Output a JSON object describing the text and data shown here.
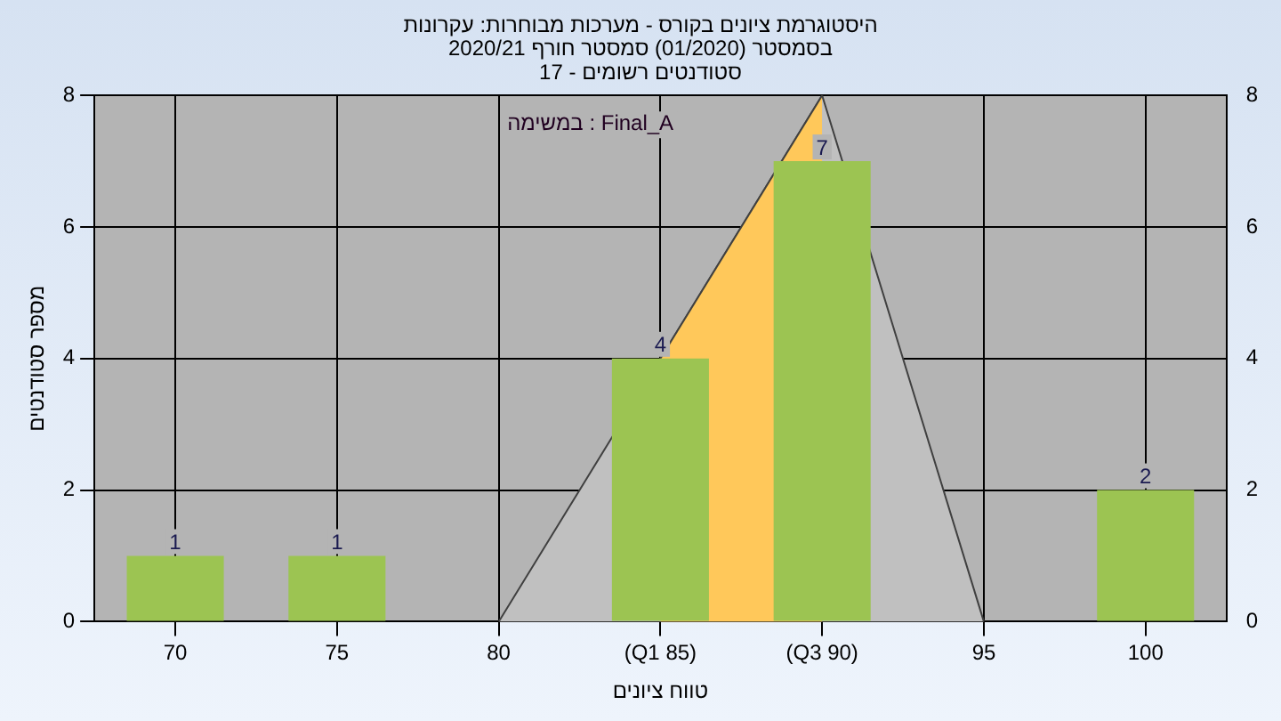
{
  "chart_data": {
    "type": "bar",
    "title": [
      "היסטוגרמת ציונים בקורס - מערכות מבוחרות: עקרונות",
      "בסמסטר (01/2020) סמסטר חורף 2020/21",
      "סטודנטים רשומים - 17"
    ],
    "xlabel": "טווח ציונים",
    "ylabel": "מספר סטודנטים",
    "annotations": [
      "במשימה : Final_A"
    ],
    "categories": [
      "70",
      "75",
      "80",
      "(Q1 85)",
      "(Q3 90)",
      "95",
      "100"
    ],
    "series": [
      {
        "color": "#9cc452",
        "values": [
          1,
          1,
          0,
          4,
          7,
          0,
          2
        ],
        "value_labels": [
          "1",
          "1",
          null,
          "4",
          "7",
          null,
          "2"
        ]
      },
      {
        "type": "area",
        "color": "#c0c0c0",
        "values": [
          null,
          null,
          0,
          4,
          8,
          0,
          null
        ]
      },
      {
        "type": "area",
        "color": "#ffc85a",
        "values": [
          null,
          null,
          null,
          4,
          8,
          null,
          null
        ]
      }
    ],
    "ylim": [
      0,
      8
    ],
    "yticks": [
      0,
      2,
      4,
      6,
      8
    ],
    "y2lim": [
      0,
      8
    ],
    "y2ticks": [
      0,
      2,
      4,
      6,
      8
    ],
    "grid": true,
    "legend": false
  }
}
